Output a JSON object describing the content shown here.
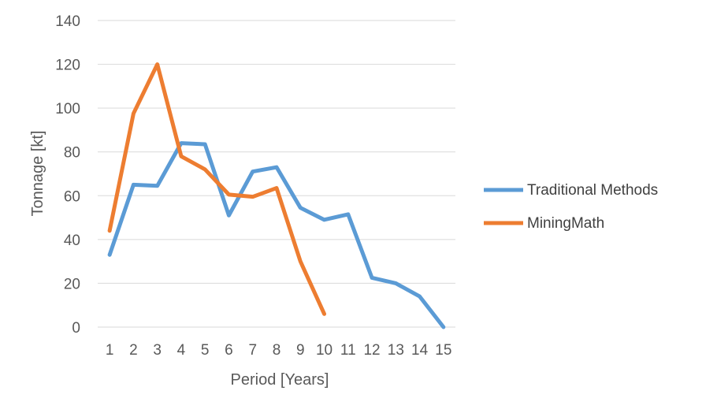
{
  "chart_data": {
    "type": "line",
    "xlabel": "Period [Years]",
    "ylabel": "Tonnage [kt]",
    "x": [
      1,
      2,
      3,
      4,
      5,
      6,
      7,
      8,
      9,
      10,
      11,
      12,
      13,
      14,
      15
    ],
    "ylim": [
      0,
      140
    ],
    "yticks": [
      0,
      20,
      40,
      60,
      80,
      100,
      120,
      140
    ],
    "grid": true,
    "legend_position": "right",
    "series": [
      {
        "name": "Traditional Methods",
        "color": "#5B9BD5",
        "x": [
          1,
          2,
          3,
          4,
          5,
          6,
          7,
          8,
          9,
          10,
          11,
          12,
          13,
          14,
          15
        ],
        "values": [
          33,
          65,
          64.5,
          84,
          83.5,
          51,
          71,
          73,
          54.5,
          49,
          51.5,
          22.5,
          20,
          14,
          0
        ]
      },
      {
        "name": "MiningMath",
        "color": "#ED7D31",
        "x": [
          1,
          2,
          3,
          4,
          5,
          6,
          7,
          8,
          9,
          10
        ],
        "values": [
          44,
          97.5,
          120,
          78,
          72,
          60.5,
          59.5,
          63.5,
          30,
          6
        ]
      }
    ]
  }
}
